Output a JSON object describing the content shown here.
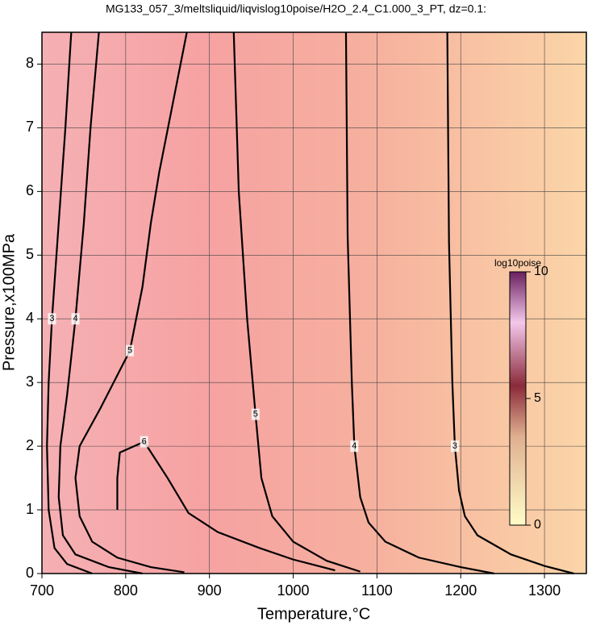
{
  "chart_data": {
    "type": "contour",
    "title": "MG133_057_3/meltsliquid/liqvislog10poise/H2O_2.4_C1.000_3_PT, dz=0.1:",
    "x_label": "Temperature,°C",
    "y_label": "Pressure,x100MPa",
    "xlim": [
      700,
      1350
    ],
    "ylim": [
      0,
      8.5
    ],
    "xticks": [
      700,
      800,
      900,
      1000,
      1100,
      1200,
      1300
    ],
    "yticks": [
      0,
      1,
      2,
      3,
      4,
      5,
      6,
      7,
      8
    ],
    "grid": true,
    "color": "#000000",
    "contours": [
      {
        "level": 3,
        "x": [
          1184,
          1186,
          1190,
          1193,
          1198,
          1205,
          1220,
          1260,
          1300,
          1335
        ],
        "y": [
          8.5,
          5.2,
          3,
          2,
          1.3,
          0.9,
          0.6,
          0.3,
          0.12,
          0
        ]
      },
      {
        "level": 4,
        "x": [
          1063,
          1065,
          1070,
          1073,
          1080,
          1090,
          1110,
          1150,
          1200,
          1240
        ],
        "y": [
          8.5,
          5.3,
          3,
          2,
          1.2,
          0.8,
          0.5,
          0.25,
          0.1,
          0
        ]
      },
      {
        "level": 5,
        "x": [
          929,
          935,
          945,
          955,
          962,
          975,
          1000,
          1040,
          1080
        ],
        "y": [
          8.5,
          6,
          4,
          2.5,
          1.5,
          0.9,
          0.5,
          0.2,
          0.03
        ]
      },
      {
        "level": 5,
        "x": [
          873,
          840,
          830,
          820,
          805,
          770,
          745,
          740,
          745,
          760,
          790,
          830,
          870
        ],
        "y": [
          8.5,
          6.3,
          5.5,
          4.5,
          3.5,
          2.6,
          2.0,
          1.5,
          0.9,
          0.5,
          0.25,
          0.1,
          0.02
        ]
      },
      {
        "level": 6,
        "x": [
          790,
          790,
          793,
          822,
          850,
          875,
          910,
          960,
          1000,
          1050
        ],
        "y": [
          1.0,
          1.5,
          1.9,
          2.07,
          1.5,
          0.95,
          0.65,
          0.4,
          0.22,
          0.05
        ]
      },
      {
        "level": 4,
        "x": [
          768,
          758,
          750,
          740,
          730,
          722,
          720,
          725,
          740,
          780,
          820
        ],
        "y": [
          8.5,
          7,
          5.5,
          4,
          2.8,
          2,
          1.2,
          0.6,
          0.3,
          0.1,
          0
        ]
      },
      {
        "level": 3,
        "x": [
          735,
          728,
          720,
          712,
          708,
          706,
          708,
          715,
          730,
          760
        ],
        "y": [
          8.5,
          7,
          5.5,
          4,
          3,
          2,
          1,
          0.4,
          0.15,
          0
        ]
      }
    ],
    "colorbar": {
      "label": "log10poise",
      "range": [
        0,
        10
      ],
      "ticks": [
        0,
        5,
        10
      ]
    }
  }
}
